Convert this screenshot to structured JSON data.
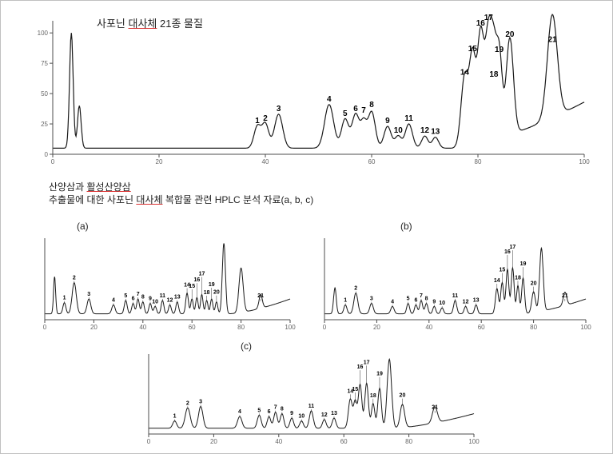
{
  "titles": {
    "main": "사포닌 대사체 21종 물질",
    "sub_line1": "산양삼과 활성산양삼",
    "sub_line2": "추출물에 대한 사포닌 대사체 복합물 관련 HPLC 분석 자료(a, b, c)"
  },
  "panel_labels": {
    "a": "(a)",
    "b": "(b)",
    "c": "(c)"
  },
  "colors": {
    "background": "#ffffff",
    "line": "#1a1a1a",
    "axis": "#4d4d4d",
    "border": "#c0c0c0",
    "peak_label": "#000000",
    "accent_underline": "#d33333"
  },
  "main_chart": {
    "type": "hplc-chromatogram",
    "x_range": [
      0,
      100
    ],
    "y_range": [
      0,
      110
    ],
    "x_ticks": [
      0,
      20,
      40,
      60,
      80,
      100
    ],
    "y_ticks": [
      0,
      25,
      50,
      75,
      100
    ],
    "line_width": 1.2,
    "baseline_y": 5,
    "peaks": [
      {
        "n": 0,
        "x": 3.5,
        "h": 95,
        "w": 0.8,
        "label": ""
      },
      {
        "n": 0,
        "x": 5.0,
        "h": 35,
        "w": 0.8,
        "label": ""
      },
      {
        "n": 1,
        "x": 38.5,
        "h": 18,
        "w": 1.5,
        "label": "1"
      },
      {
        "n": 2,
        "x": 40.0,
        "h": 20,
        "w": 1.5,
        "label": "2"
      },
      {
        "n": 3,
        "x": 42.5,
        "h": 28,
        "w": 1.8,
        "label": "3"
      },
      {
        "n": 4,
        "x": 52.0,
        "h": 36,
        "w": 2.0,
        "label": "4"
      },
      {
        "n": 5,
        "x": 55.0,
        "h": 24,
        "w": 1.6,
        "label": "5"
      },
      {
        "n": 6,
        "x": 57.0,
        "h": 28,
        "w": 1.6,
        "label": "6"
      },
      {
        "n": 7,
        "x": 58.5,
        "h": 20,
        "w": 1.3,
        "label": "7"
      },
      {
        "n": 8,
        "x": 60.0,
        "h": 30,
        "w": 1.6,
        "label": "8"
      },
      {
        "n": 9,
        "x": 63.0,
        "h": 18,
        "w": 1.6,
        "label": "9"
      },
      {
        "n": 10,
        "x": 65.0,
        "h": 10,
        "w": 1.4,
        "label": "10"
      },
      {
        "n": 11,
        "x": 67.0,
        "h": 20,
        "w": 1.6,
        "label": "11"
      },
      {
        "n": 12,
        "x": 70.0,
        "h": 10,
        "w": 1.4,
        "label": "12"
      },
      {
        "n": 13,
        "x": 72.0,
        "h": 9,
        "w": 1.4,
        "label": "13"
      },
      {
        "n": 14,
        "x": 77.5,
        "h": 58,
        "w": 1.6,
        "label": "14"
      },
      {
        "n": 15,
        "x": 79.0,
        "h": 72,
        "w": 1.4,
        "label": "15"
      },
      {
        "n": 16,
        "x": 80.5,
        "h": 88,
        "w": 1.4,
        "label": "16"
      },
      {
        "n": 17,
        "x": 82.0,
        "h": 90,
        "w": 1.5,
        "label": "17"
      },
      {
        "n": 18,
        "x": 83.0,
        "h": 55,
        "w": 1.2,
        "label": "18"
      },
      {
        "n": 19,
        "x": 84.0,
        "h": 70,
        "w": 1.3,
        "label": "19"
      },
      {
        "n": 20,
        "x": 86.0,
        "h": 80,
        "w": 1.6,
        "label": "20"
      },
      {
        "n": 21,
        "x": 94.0,
        "h": 85,
        "w": 2.2,
        "label": "21"
      }
    ],
    "tail_rise": 38,
    "label_fontsize": 10
  },
  "small_charts": {
    "common": {
      "type": "hplc-chromatogram",
      "x_range": [
        0,
        100
      ],
      "y_range": [
        0,
        110
      ],
      "x_ticks": [
        0,
        20,
        40,
        60,
        80,
        100
      ],
      "line_width": 1.0,
      "baseline_y": 8,
      "tail_rise": 20,
      "label_fontsize": 7
    },
    "a": {
      "peaks": [
        {
          "n": 0,
          "x": 4,
          "h": 50,
          "w": 1.0,
          "label": ""
        },
        {
          "n": 1,
          "x": 8,
          "h": 15,
          "w": 1.4,
          "label": "1"
        },
        {
          "n": 2,
          "x": 12,
          "h": 42,
          "w": 2.0,
          "label": "2"
        },
        {
          "n": 3,
          "x": 18,
          "h": 20,
          "w": 1.8,
          "label": "3"
        },
        {
          "n": 4,
          "x": 28,
          "h": 12,
          "w": 1.6,
          "label": "4"
        },
        {
          "n": 5,
          "x": 33,
          "h": 18,
          "w": 1.4,
          "label": "5"
        },
        {
          "n": 6,
          "x": 36,
          "h": 14,
          "w": 1.3,
          "label": "6"
        },
        {
          "n": 7,
          "x": 38,
          "h": 20,
          "w": 1.3,
          "label": "7"
        },
        {
          "n": 8,
          "x": 40,
          "h": 16,
          "w": 1.3,
          "label": "8"
        },
        {
          "n": 9,
          "x": 43,
          "h": 14,
          "w": 1.3,
          "label": "9"
        },
        {
          "n": 10,
          "x": 45,
          "h": 10,
          "w": 1.3,
          "label": "10"
        },
        {
          "n": 11,
          "x": 48,
          "h": 18,
          "w": 1.3,
          "label": "11"
        },
        {
          "n": 12,
          "x": 51,
          "h": 12,
          "w": 1.3,
          "label": "12"
        },
        {
          "n": 13,
          "x": 54,
          "h": 16,
          "w": 1.3,
          "label": "13"
        },
        {
          "n": 14,
          "x": 58,
          "h": 28,
          "w": 1.3,
          "label": "14"
        },
        {
          "n": 15,
          "x": 60,
          "h": 20,
          "w": 1.2,
          "label": "15"
        },
        {
          "n": 16,
          "x": 62,
          "h": 22,
          "w": 1.2,
          "label": "16"
        },
        {
          "n": 17,
          "x": 64,
          "h": 26,
          "w": 1.2,
          "label": "17"
        },
        {
          "n": 18,
          "x": 66,
          "h": 18,
          "w": 1.2,
          "label": "18"
        },
        {
          "n": 19,
          "x": 68,
          "h": 20,
          "w": 1.2,
          "label": "19"
        },
        {
          "n": 20,
          "x": 70,
          "h": 16,
          "w": 1.2,
          "label": "20"
        },
        {
          "n": 0,
          "x": 73,
          "h": 95,
          "w": 1.5,
          "label": ""
        },
        {
          "n": 0,
          "x": 80,
          "h": 60,
          "w": 2.0,
          "label": ""
        },
        {
          "n": 21,
          "x": 88,
          "h": 18,
          "w": 1.6,
          "label": "21"
        }
      ]
    },
    "b": {
      "peaks": [
        {
          "n": 0,
          "x": 4,
          "h": 35,
          "w": 1.2,
          "label": ""
        },
        {
          "n": 1,
          "x": 8,
          "h": 12,
          "w": 1.4,
          "label": "1"
        },
        {
          "n": 2,
          "x": 12,
          "h": 28,
          "w": 1.8,
          "label": "2"
        },
        {
          "n": 3,
          "x": 18,
          "h": 14,
          "w": 1.6,
          "label": "3"
        },
        {
          "n": 4,
          "x": 26,
          "h": 10,
          "w": 1.5,
          "label": "4"
        },
        {
          "n": 5,
          "x": 32,
          "h": 14,
          "w": 1.3,
          "label": "5"
        },
        {
          "n": 6,
          "x": 35,
          "h": 12,
          "w": 1.3,
          "label": "6"
        },
        {
          "n": 7,
          "x": 37,
          "h": 18,
          "w": 1.3,
          "label": "7"
        },
        {
          "n": 8,
          "x": 39,
          "h": 14,
          "w": 1.3,
          "label": "8"
        },
        {
          "n": 9,
          "x": 42,
          "h": 10,
          "w": 1.3,
          "label": "9"
        },
        {
          "n": 10,
          "x": 45,
          "h": 8,
          "w": 1.3,
          "label": "10"
        },
        {
          "n": 11,
          "x": 50,
          "h": 18,
          "w": 1.4,
          "label": "11"
        },
        {
          "n": 12,
          "x": 54,
          "h": 10,
          "w": 1.3,
          "label": "12"
        },
        {
          "n": 13,
          "x": 58,
          "h": 12,
          "w": 1.3,
          "label": "13"
        },
        {
          "n": 14,
          "x": 66,
          "h": 34,
          "w": 1.4,
          "label": "14"
        },
        {
          "n": 15,
          "x": 68,
          "h": 42,
          "w": 1.3,
          "label": "15"
        },
        {
          "n": 16,
          "x": 70,
          "h": 60,
          "w": 1.3,
          "label": "16"
        },
        {
          "n": 17,
          "x": 72,
          "h": 62,
          "w": 1.3,
          "label": "17"
        },
        {
          "n": 18,
          "x": 74,
          "h": 38,
          "w": 1.2,
          "label": "18"
        },
        {
          "n": 19,
          "x": 76,
          "h": 48,
          "w": 1.3,
          "label": "19"
        },
        {
          "n": 20,
          "x": 80,
          "h": 28,
          "w": 1.6,
          "label": "20"
        },
        {
          "n": 0,
          "x": 83,
          "h": 85,
          "w": 1.6,
          "label": ""
        },
        {
          "n": 21,
          "x": 92,
          "h": 18,
          "w": 1.6,
          "label": "21"
        }
      ]
    },
    "c": {
      "peaks": [
        {
          "n": 1,
          "x": 8,
          "h": 10,
          "w": 1.4,
          "label": "1"
        },
        {
          "n": 2,
          "x": 12,
          "h": 28,
          "w": 1.8,
          "label": "2"
        },
        {
          "n": 3,
          "x": 16,
          "h": 30,
          "w": 1.6,
          "label": "3"
        },
        {
          "n": 4,
          "x": 28,
          "h": 16,
          "w": 1.6,
          "label": "4"
        },
        {
          "n": 5,
          "x": 34,
          "h": 18,
          "w": 1.4,
          "label": "5"
        },
        {
          "n": 6,
          "x": 37,
          "h": 16,
          "w": 1.3,
          "label": "6"
        },
        {
          "n": 7,
          "x": 39,
          "h": 22,
          "w": 1.3,
          "label": "7"
        },
        {
          "n": 8,
          "x": 41,
          "h": 20,
          "w": 1.3,
          "label": "8"
        },
        {
          "n": 9,
          "x": 44,
          "h": 14,
          "w": 1.3,
          "label": "9"
        },
        {
          "n": 10,
          "x": 47,
          "h": 10,
          "w": 1.3,
          "label": "10"
        },
        {
          "n": 11,
          "x": 50,
          "h": 24,
          "w": 1.4,
          "label": "11"
        },
        {
          "n": 12,
          "x": 54,
          "h": 12,
          "w": 1.3,
          "label": "12"
        },
        {
          "n": 13,
          "x": 57,
          "h": 14,
          "w": 1.3,
          "label": "13"
        },
        {
          "n": 14,
          "x": 62,
          "h": 40,
          "w": 1.4,
          "label": "14"
        },
        {
          "n": 15,
          "x": 63.5,
          "h": 36,
          "w": 1.2,
          "label": "15"
        },
        {
          "n": 16,
          "x": 65,
          "h": 60,
          "w": 1.3,
          "label": "16"
        },
        {
          "n": 17,
          "x": 67,
          "h": 62,
          "w": 1.3,
          "label": "17"
        },
        {
          "n": 18,
          "x": 69,
          "h": 34,
          "w": 1.2,
          "label": "18"
        },
        {
          "n": 19,
          "x": 71,
          "h": 55,
          "w": 1.3,
          "label": "19"
        },
        {
          "n": 0,
          "x": 74,
          "h": 95,
          "w": 1.6,
          "label": ""
        },
        {
          "n": 20,
          "x": 78,
          "h": 32,
          "w": 1.6,
          "label": "20"
        },
        {
          "n": 21,
          "x": 88,
          "h": 22,
          "w": 1.8,
          "label": "21"
        }
      ]
    }
  }
}
